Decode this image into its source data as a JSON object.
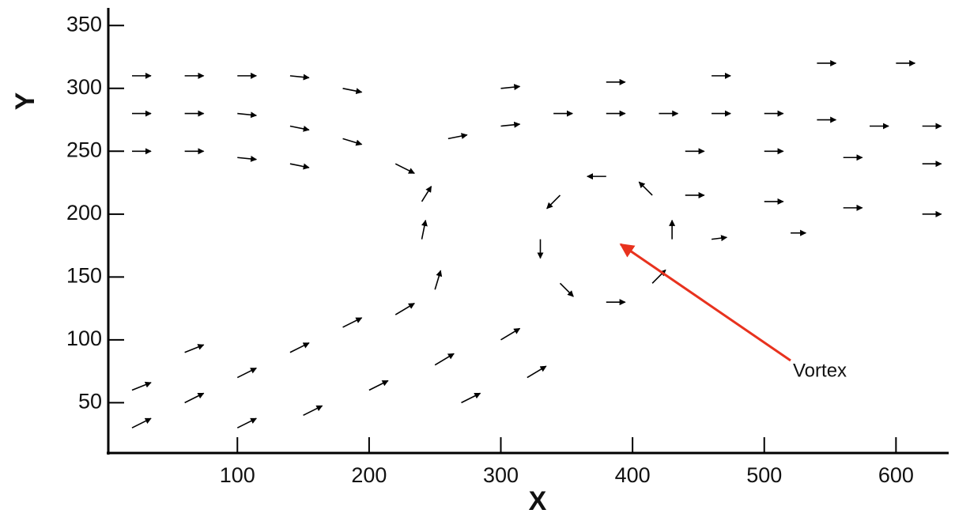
{
  "chart_data": {
    "type": "quiver",
    "xlabel": "X",
    "ylabel": "Y",
    "xlim": [
      2,
      640
    ],
    "ylim": [
      10,
      364
    ],
    "xticks": [
      100,
      200,
      300,
      400,
      500,
      600
    ],
    "yticks": [
      50,
      100,
      150,
      200,
      250,
      300,
      350
    ],
    "color": "#000000",
    "x": [
      20,
      60,
      100,
      140,
      180,
      20,
      60,
      100,
      140,
      180,
      220,
      20,
      60,
      100,
      140,
      260,
      300,
      340,
      380,
      420,
      460,
      500,
      540,
      580,
      620,
      300,
      380,
      460,
      540,
      600,
      440,
      500,
      560,
      620,
      440,
      500,
      560,
      620,
      460,
      520,
      380,
      330,
      380,
      430,
      345,
      345,
      415,
      415,
      240,
      250,
      240,
      20,
      60,
      100,
      140,
      180,
      220,
      100,
      150,
      200,
      250,
      300,
      20,
      60,
      270,
      320
    ],
    "y": [
      310,
      310,
      310,
      310,
      300,
      280,
      280,
      280,
      270,
      260,
      240,
      250,
      250,
      245,
      240,
      260,
      270,
      280,
      280,
      280,
      280,
      280,
      275,
      270,
      270,
      300,
      305,
      310,
      320,
      320,
      250,
      250,
      245,
      240,
      215,
      210,
      205,
      200,
      180,
      185,
      230,
      180,
      130,
      180,
      215,
      145,
      145,
      215,
      180,
      140,
      210,
      30,
      50,
      70,
      90,
      110,
      120,
      30,
      40,
      60,
      80,
      100,
      60,
      90,
      50,
      70
    ],
    "u": [
      1,
      1,
      1,
      1,
      1,
      1,
      1,
      1,
      1,
      1,
      1,
      1,
      1,
      1,
      1,
      1,
      1,
      1,
      1,
      1,
      1,
      1,
      1,
      1,
      1,
      1,
      1,
      1,
      1,
      1,
      1,
      1,
      1,
      1,
      1,
      1,
      1,
      1,
      0.8,
      0.8,
      -1,
      0,
      1,
      0,
      -0.7,
      0.7,
      0.7,
      -0.7,
      0.2,
      0.3,
      0.5,
      1,
      1,
      1,
      1,
      1,
      1,
      1,
      1,
      1,
      1,
      1,
      1,
      1,
      1,
      1
    ],
    "v": [
      0,
      0,
      0,
      -0.1,
      -0.2,
      0,
      0,
      -0.1,
      -0.2,
      -0.3,
      -0.5,
      0,
      0,
      -0.1,
      -0.2,
      0.2,
      0.1,
      0,
      0,
      0,
      0,
      0,
      0,
      0,
      0,
      0.1,
      0,
      0,
      0,
      0,
      0,
      0,
      0,
      0,
      0,
      0,
      0,
      0,
      0.1,
      0,
      0,
      -1,
      0,
      1,
      -0.7,
      -0.7,
      0.7,
      0.7,
      1,
      1,
      0.8,
      0.5,
      0.5,
      0.5,
      0.5,
      0.5,
      0.6,
      0.5,
      0.5,
      0.5,
      0.6,
      0.6,
      0.4,
      0.4,
      0.5,
      0.6
    ],
    "annotation": {
      "text": "Vortex",
      "xy": [
        391,
        176
      ],
      "color": "#e8321e"
    }
  }
}
